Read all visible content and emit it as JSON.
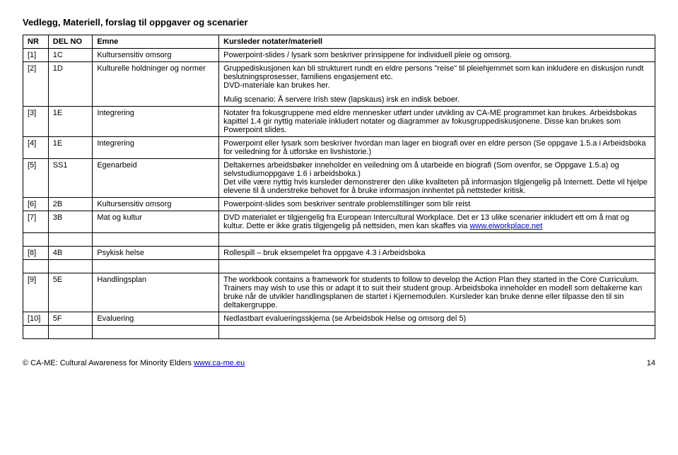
{
  "doc_title": "Vedlegg, Materiell, forslag til oppgaver og scenarier",
  "columns": {
    "nr": "NR",
    "del_no": "DEL NO",
    "emne": "Emne",
    "notes": "Kursleder notater/materiell"
  },
  "rows": [
    {
      "nr": "[1]",
      "del": "1C",
      "emne": "Kultursensitiv omsorg",
      "notes_html": "Powerpoint-slides / lysark som beskriver prinsippene for individuell pleie og omsorg."
    },
    {
      "nr": "[2]",
      "del": "1D",
      "emne": "Kulturelle holdninger og normer",
      "notes_html": "<p class='para'>Gruppediskusjonen kan bli strukturert rundt en eldre persons \"reise\" til pleiehjemmet som kan inkludere en diskusjon rundt beslutningsprosesser, familiens engasjement etc.<br>DVD-materiale kan brukes her.</p><p class='para'>Mulig scenario: Å servere Irish stew (lapskaus) irsk en indisk beboer.</p>"
    },
    {
      "nr": "[3]",
      "del": "1E",
      "emne": "Integrering",
      "notes_html": "Notater fra fokusgruppene med eldre mennesker utført under utvikling av CA-ME programmet kan brukes. Arbeidsbokas kapittel 1.4 gir nyttig materiale inkludert notater og diagrammer av fokusgruppediskusjonene. Disse kan brukes som Powerpoint slides."
    },
    {
      "nr": "[4]",
      "del": "1E",
      "emne": "Integrering",
      "notes_html": "Powerpoint eller lysark som beskriver hvordan man lager en biografi over en eldre person (Se oppgave 1.5.a i Arbeidsboka for veiledning for å utforske en livshistorie.)"
    },
    {
      "nr": "[5]",
      "del": "SS1",
      "emne": "Egenarbeid",
      "notes_html": "Deltakernes arbeidsbøker inneholder en veiledning om å utarbeide en biografi (Som ovenfor, se Oppgave 1.5.a) og selvstudiumoppgave 1.6 i arbeidsboka.)<br>Det ville være nyttig hvis kursleder demonstrerer den ulike kvaliteten på informasjon tilgjengelig på Internett. Dette vil hjelpe elevene til å understreke behovet for å bruke informasjon innhentet på nettsteder kritisk."
    },
    {
      "nr": "[6]",
      "del": "2B",
      "emne": "Kultursensitiv omsorg",
      "notes_html": "Powerpoint-slides som beskriver sentrale problemstillinger som blir reist"
    },
    {
      "nr": "[7]",
      "del": "3B",
      "emne": "Mat og kultur",
      "notes_html": "DVD materialet er tilgjengelig fra European Intercultural Workplace. Det er 13 ulike scenarier inkludert ett om å mat og kultur. Dette er ikke gratis tilgjengelig på nettsiden, men kan skaffes via <a href='#' data-name='eiworkplace-link' data-interactable='true'>www.eiworkplace.net</a>"
    },
    {
      "nr": "[8]",
      "del": "4B",
      "emne": "Psykisk helse",
      "notes_html": "Rollespill – bruk eksempelet fra oppgave 4.3 i Arbeidsboka"
    },
    {
      "nr": "[9]",
      "del": "5E",
      "emne": "Handlingsplan",
      "notes_html": "The workbook contains a framework for students to follow to develop the Action Plan they started in the Core Curriculum. Trainers may wish to use this or adapt it to suit their student group. Arbeidsboka inneholder en modell som deltakerne kan bruke når de utvikler handlingsplanen de startet i Kjernemodulen. Kursleder kan bruke denne eller tilpasse den til sin deltakergruppe."
    },
    {
      "nr": "[10]",
      "del": "5F",
      "emne": "Evaluering",
      "notes_html": "Nedlastbart evalueringsskjema (se Arbeidsbok Helse og omsorg del 5)"
    }
  ],
  "footer": {
    "copyright_prefix": "© CA-ME: Cultural Awareness for Minority Elders ",
    "url_text": "www.ca-me.eu",
    "page": "14"
  },
  "spacer_rows_after": {
    "6": true,
    "7": true,
    "9": true
  }
}
